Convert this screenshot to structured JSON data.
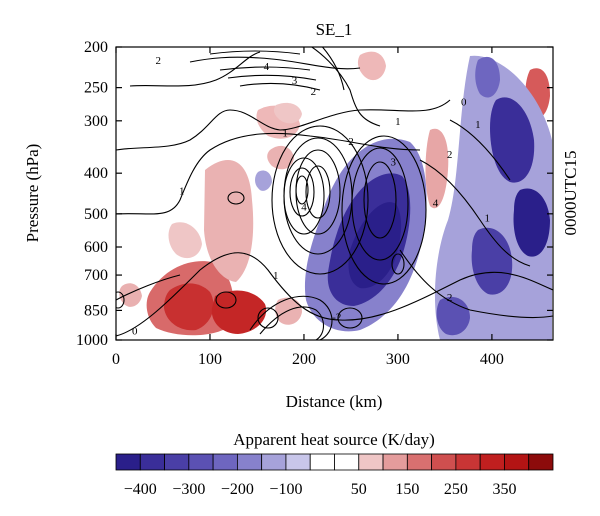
{
  "chart_data": {
    "type": "heatmap",
    "title": "SE_1",
    "xlabel": "Distance (km)",
    "ylabel": "Pressure (hPa)",
    "right_label": "0000UTC15",
    "x_ticks": [
      0,
      100,
      200,
      300,
      400
    ],
    "xlim": [
      0,
      465
    ],
    "y_ticks": [
      200,
      250,
      300,
      400,
      500,
      600,
      700,
      850,
      1000
    ],
    "ylim": [
      1000,
      200
    ],
    "y_scale": "log",
    "colorbar": {
      "title": "Apparent heat source (K/day)",
      "levels": [
        -450,
        -400,
        -350,
        -300,
        -250,
        -200,
        -150,
        -100,
        -50,
        0,
        50,
        100,
        150,
        200,
        250,
        300,
        350,
        400,
        450
      ],
      "tick_labels": [
        "-400",
        "-300",
        "-200",
        "-100",
        "50",
        "150",
        "250",
        "350"
      ],
      "tick_values": [
        -400,
        -300,
        -200,
        -100,
        50,
        150,
        250,
        350
      ],
      "colors": [
        "#2a1f8a",
        "#3a2e99",
        "#4a3fa6",
        "#5b51b3",
        "#6e66c0",
        "#8781cc",
        "#a6a2da",
        "#c8c6ea",
        "#ffffff",
        "#ffffff",
        "#efc6c6",
        "#e49c9c",
        "#d97070",
        "#cf4f4f",
        "#c83535",
        "#c01f1f",
        "#b31414",
        "#8c0b0b"
      ]
    },
    "contour_labels": [
      {
        "x": 235,
        "p": 880,
        "value": "-2"
      },
      {
        "x": 20,
        "p": 950,
        "value": "0"
      },
      {
        "x": 70,
        "p": 440,
        "value": "1"
      },
      {
        "x": 180,
        "p": 320,
        "value": "1"
      },
      {
        "x": 300,
        "p": 300,
        "value": "1"
      },
      {
        "x": 385,
        "p": 305,
        "value": "1"
      },
      {
        "x": 395,
        "p": 510,
        "value": "1"
      },
      {
        "x": 45,
        "p": 215,
        "value": "2"
      },
      {
        "x": 210,
        "p": 255,
        "value": "2"
      },
      {
        "x": 250,
        "p": 335,
        "value": "2"
      },
      {
        "x": 295,
        "p": 375,
        "value": "3"
      },
      {
        "x": 190,
        "p": 240,
        "value": "3"
      },
      {
        "x": 160,
        "p": 222,
        "value": "4"
      },
      {
        "x": 200,
        "p": 480,
        "value": "4"
      },
      {
        "x": 340,
        "p": 470,
        "value": "4"
      },
      {
        "x": 355,
        "p": 360,
        "value": "2"
      },
      {
        "x": 370,
        "p": 270,
        "value": "0"
      },
      {
        "x": 355,
        "p": 790,
        "value": "2"
      },
      {
        "x": 170,
        "p": 700,
        "value": "1"
      }
    ]
  }
}
